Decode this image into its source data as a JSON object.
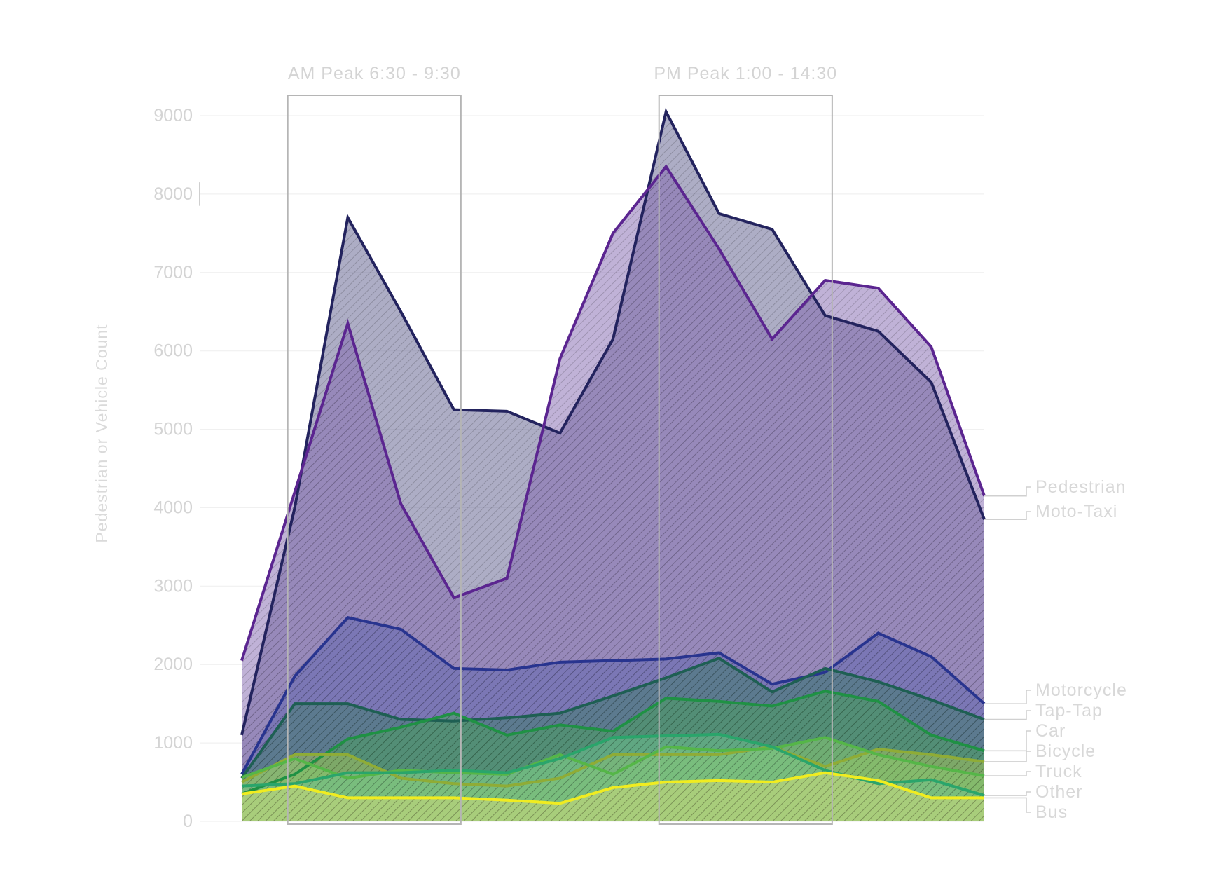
{
  "chart_data": {
    "type": "area",
    "title": "",
    "xlabel": "",
    "ylabel": "Pedestrian or Vehicle Count",
    "ylim": [
      0,
      9000
    ],
    "yticks": [
      0,
      1000,
      2000,
      3000,
      4000,
      5000,
      6000,
      7000,
      8000,
      9000
    ],
    "grid": true,
    "x_points": 15,
    "peaks": [
      {
        "label": "AM Peak 6:30 - 9:30",
        "start": 1,
        "end": 4
      },
      {
        "label": "PM Peak 1:00 - 14:30",
        "start": 8,
        "end": 11
      }
    ],
    "series": [
      {
        "name": "Moto-Taxi",
        "color": "#23235e",
        "fill": "#5b5b8c",
        "values": [
          1100,
          4000,
          7700,
          6500,
          5250,
          5230,
          4950,
          6150,
          9050,
          7750,
          7550,
          6450,
          6250,
          5600,
          3850
        ]
      },
      {
        "name": "Pedestrian",
        "color": "#5b2590",
        "fill": "#8266b0",
        "values": [
          2050,
          4200,
          6350,
          4050,
          2850,
          3100,
          5900,
          7500,
          8350,
          7300,
          6150,
          6900,
          6800,
          6050,
          4150
        ]
      },
      {
        "name": "Motorcycle",
        "color": "#28348f",
        "fill": "#5f66b0",
        "values": [
          600,
          1850,
          2600,
          2450,
          1950,
          1930,
          2030,
          2050,
          2070,
          2150,
          1750,
          1900,
          2400,
          2100,
          1500
        ]
      },
      {
        "name": "Tap-Tap",
        "color": "#1e5f53",
        "fill": "#3d7d69",
        "values": [
          550,
          1500,
          1500,
          1300,
          1280,
          1320,
          1380,
          1600,
          1830,
          2080,
          1650,
          1950,
          1780,
          1550,
          1300
        ]
      },
      {
        "name": "Car",
        "color": "#1f9144",
        "fill": "#4aa25e",
        "values": [
          350,
          600,
          1050,
          1200,
          1380,
          1100,
          1230,
          1150,
          1570,
          1530,
          1470,
          1660,
          1530,
          1100,
          900
        ]
      },
      {
        "name": "Bicycle",
        "color": "#8fac36",
        "fill": "#a8c25a",
        "values": [
          500,
          850,
          850,
          550,
          480,
          450,
          550,
          850,
          850,
          850,
          950,
          700,
          920,
          850,
          760
        ]
      },
      {
        "name": "Truck",
        "color": "#55b648",
        "fill": "#8ccb70",
        "values": [
          560,
          800,
          550,
          650,
          620,
          600,
          850,
          600,
          950,
          900,
          930,
          1070,
          850,
          700,
          580
        ]
      },
      {
        "name": "Other",
        "color": "#2aa56b",
        "fill": "#6dc08d",
        "values": [
          450,
          480,
          620,
          620,
          650,
          620,
          800,
          1070,
          1090,
          1110,
          950,
          650,
          480,
          530,
          330
        ]
      },
      {
        "name": "Bus",
        "color": "#f0ec20",
        "fill": "#d8de7a",
        "values": [
          350,
          450,
          300,
          300,
          300,
          270,
          230,
          430,
          500,
          520,
          500,
          620,
          520,
          300,
          300
        ]
      }
    ],
    "legend": {
      "placement": "right",
      "order": [
        "Pedestrian",
        "Moto-Taxi",
        "Motorcycle",
        "Tap-Tap",
        "Car",
        "Bicycle",
        "Truck",
        "Other",
        "Bus"
      ]
    }
  }
}
